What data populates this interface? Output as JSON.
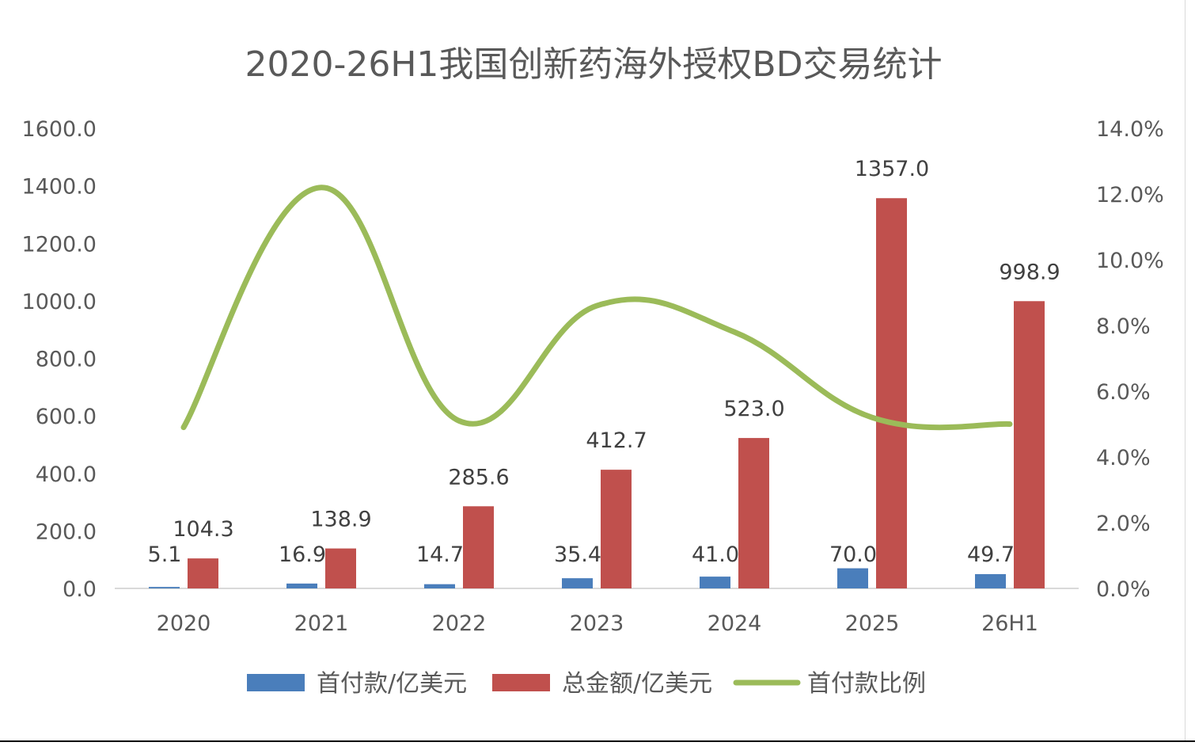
{
  "chart_data": {
    "type": "bar",
    "title": "2020-26H1我国创新药海外授权BD交易统计",
    "categories": [
      "2020",
      "2021",
      "2022",
      "2023",
      "2024",
      "2025",
      "26H1"
    ],
    "series": [
      {
        "name": "首付款/亿美元",
        "kind": "bar",
        "axis": "left",
        "color": "#4a7ebb",
        "values": [
          5.1,
          16.9,
          14.7,
          35.4,
          41.0,
          70.0,
          49.7
        ],
        "labels": [
          "5.1",
          "16.9",
          "14.7",
          "35.4",
          "41.0",
          "70.0",
          "49.7"
        ]
      },
      {
        "name": "总金额/亿美元",
        "kind": "bar",
        "axis": "left",
        "color": "#c0504d",
        "values": [
          104.3,
          138.9,
          285.6,
          412.7,
          523.0,
          1357.0,
          998.9
        ],
        "labels": [
          "104.3",
          "138.9",
          "285.6",
          "412.7",
          "523.0",
          "1357.0",
          "998.9"
        ]
      },
      {
        "name": "首付款比例",
        "kind": "line",
        "axis": "right",
        "color": "#9bbb59",
        "smooth": true,
        "values": [
          4.9,
          12.2,
          5.1,
          8.6,
          7.8,
          5.2,
          5.0
        ]
      }
    ],
    "y_left": {
      "min": 0,
      "max": 1600,
      "ticks": [
        "0.0",
        "200.0",
        "400.0",
        "600.0",
        "800.0",
        "1000.0",
        "1200.0",
        "1400.0",
        "1600.0"
      ]
    },
    "y_right": {
      "min": 0,
      "max": 14,
      "ticks": [
        "0.0%",
        "2.0%",
        "4.0%",
        "6.0%",
        "8.0%",
        "10.0%",
        "12.0%",
        "14.0%"
      ]
    },
    "grid": false,
    "legend_position": "bottom"
  }
}
